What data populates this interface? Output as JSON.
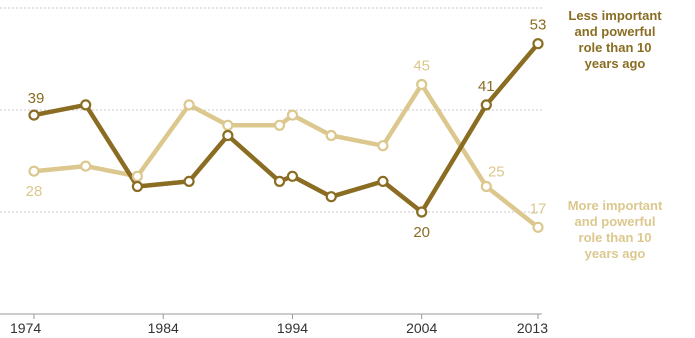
{
  "chart_data": {
    "type": "line",
    "x": [
      1974,
      1978,
      1982,
      1986,
      1989,
      1993,
      1994,
      1997,
      2001,
      2004,
      2009,
      2013
    ],
    "x_ticks": [
      "1974",
      "1984",
      "1994",
      "2004",
      "2013"
    ],
    "xlim": [
      1974,
      2013
    ],
    "ylim": [
      0,
      60
    ],
    "grid_values": [
      20,
      40,
      60
    ],
    "series": [
      {
        "name": "Less important and powerful role than 10 years ago",
        "legend_lines": [
          "Less important",
          "and powerful",
          "role than 10",
          "years ago"
        ],
        "color": "#8a6d22",
        "values": [
          39,
          41,
          25,
          26,
          35,
          26,
          27,
          23,
          26,
          20,
          41,
          53
        ]
      },
      {
        "name": "More important and powerful role than 10 years ago",
        "legend_lines": [
          "More important",
          "and powerful",
          "role than 10",
          "years ago"
        ],
        "color": "#dcc88e",
        "values": [
          28,
          29,
          27,
          41,
          37,
          37,
          39,
          35,
          33,
          45,
          25,
          17
        ]
      }
    ],
    "data_labels": [
      {
        "series": 0,
        "index": 0,
        "text": "39"
      },
      {
        "series": 0,
        "index": 9,
        "text": "20"
      },
      {
        "series": 0,
        "index": 10,
        "text": "41"
      },
      {
        "series": 0,
        "index": 11,
        "text": "53"
      },
      {
        "series": 1,
        "index": 0,
        "text": "28"
      },
      {
        "series": 1,
        "index": 9,
        "text": "45"
      },
      {
        "series": 1,
        "index": 10,
        "text": "25"
      },
      {
        "series": 1,
        "index": 11,
        "text": "17"
      }
    ],
    "title": "",
    "xlabel": "",
    "ylabel": "",
    "grid": true,
    "legend_placement": "right, inline at line ends"
  }
}
